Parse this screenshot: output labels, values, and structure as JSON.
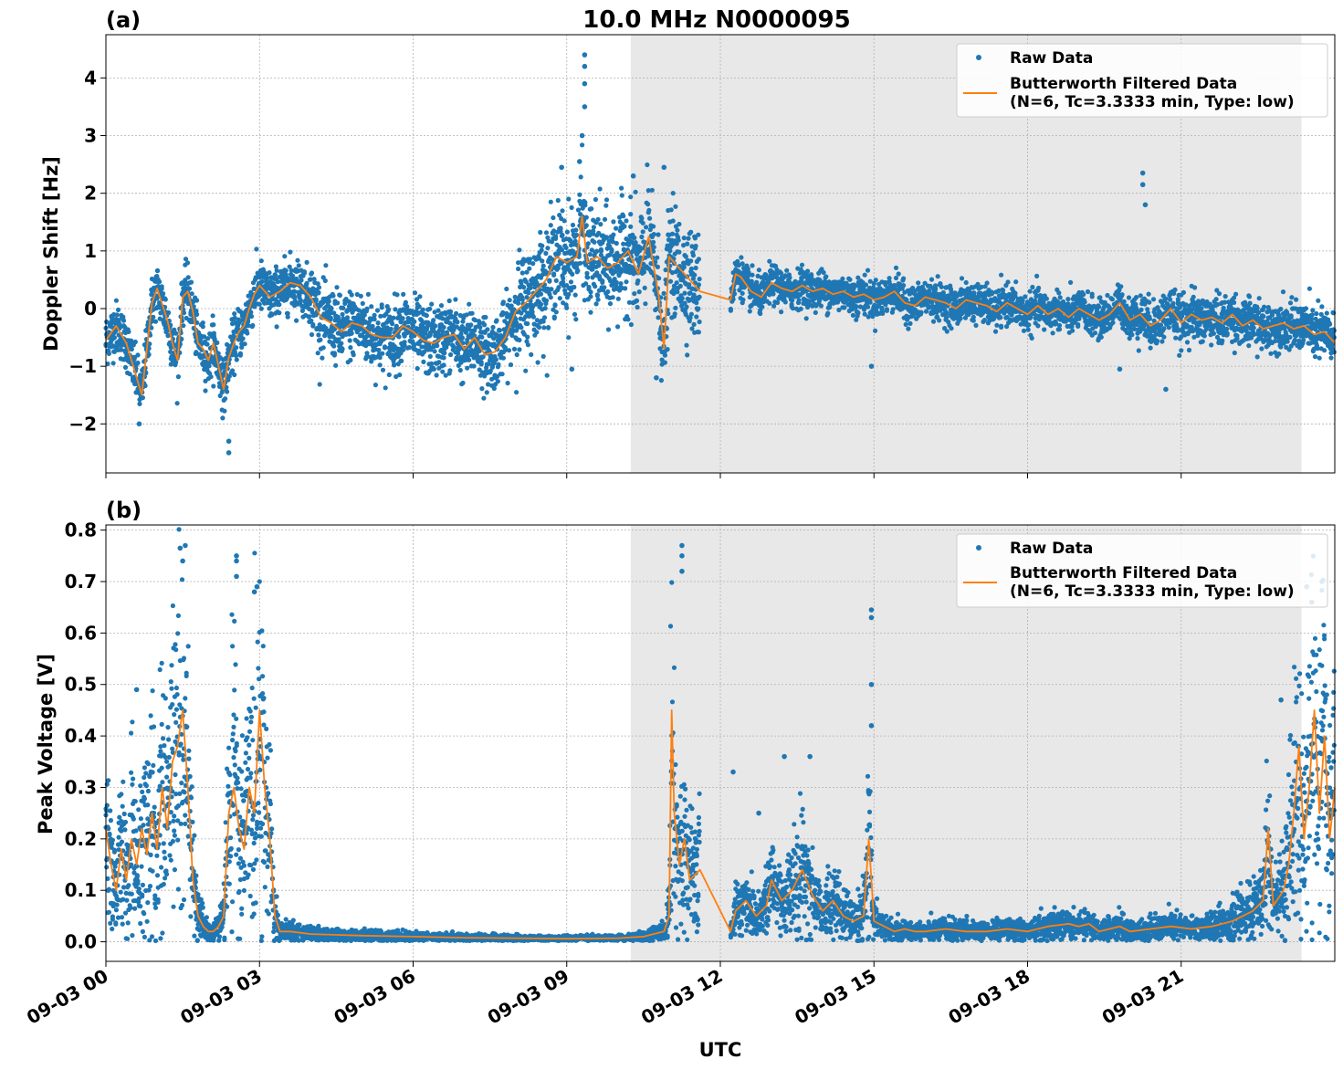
{
  "title": "10.0 MHz N0000095",
  "colors": {
    "raw": "#1f77b4",
    "filtered": "#ff7f0e",
    "shade": "#e8e8e8",
    "grid": "#b0b0b0"
  },
  "x_axis": {
    "label": "UTC",
    "range_hours": [
      0,
      24
    ],
    "ticks": [
      {
        "hour": 0,
        "label": "09-03 00"
      },
      {
        "hour": 3,
        "label": "09-03 03"
      },
      {
        "hour": 6,
        "label": "09-03 06"
      },
      {
        "hour": 9,
        "label": "09-03 09"
      },
      {
        "hour": 12,
        "label": "09-03 12"
      },
      {
        "hour": 15,
        "label": "09-03 15"
      },
      {
        "hour": 18,
        "label": "09-03 18"
      },
      {
        "hour": 21,
        "label": "09-03 21"
      }
    ]
  },
  "chart_data": [
    {
      "type": "scatter",
      "panel_label": "(a)",
      "title": "10.0 MHz N0000095",
      "ylabel": "Doppler Shift [Hz]",
      "ylim": [
        -2.85,
        4.75
      ],
      "yticks": [
        {
          "v": -2,
          "label": "−2"
        },
        {
          "v": -1,
          "label": "−1"
        },
        {
          "v": 0,
          "label": "0"
        },
        {
          "v": 1,
          "label": "1"
        },
        {
          "v": 2,
          "label": "2"
        },
        {
          "v": 3,
          "label": "3"
        },
        {
          "v": 4,
          "label": "4"
        }
      ],
      "shaded_hours": [
        10.25,
        23.35
      ],
      "grid": true,
      "legend": {
        "position": "top-right",
        "raw_label": "Raw Data",
        "filtered_line1": "Butterworth Filtered Data",
        "filtered_line2": "(N=6, Tc=3.3333 min, Type: low)"
      },
      "gap_hours": [
        11.6,
        12.2
      ],
      "series": [
        {
          "name": "Butterworth Filtered Data",
          "x": [
            0,
            0.2,
            0.4,
            0.6,
            0.7,
            0.9,
            1.0,
            1.2,
            1.3,
            1.4,
            1.5,
            1.6,
            1.7,
            1.8,
            1.9,
            2.0,
            2.1,
            2.2,
            2.3,
            2.4,
            2.5,
            2.6,
            2.7,
            2.8,
            2.9,
            3.0,
            3.2,
            3.4,
            3.6,
            3.8,
            4.0,
            4.2,
            4.4,
            4.6,
            4.8,
            5.0,
            5.2,
            5.4,
            5.6,
            5.8,
            6.0,
            6.2,
            6.4,
            6.6,
            6.8,
            7.0,
            7.2,
            7.4,
            7.6,
            7.8,
            8.0,
            8.2,
            8.4,
            8.6,
            8.8,
            9.0,
            9.2,
            9.3,
            9.4,
            9.6,
            9.8,
            10.0,
            10.2,
            10.4,
            10.6,
            10.8,
            10.9,
            11.0,
            11.2,
            11.4,
            11.6,
            12.2,
            12.3,
            12.4,
            12.6,
            12.8,
            13.0,
            13.2,
            13.4,
            13.6,
            13.8,
            14.0,
            14.2,
            14.4,
            14.6,
            14.8,
            15.0,
            15.2,
            15.4,
            15.6,
            15.8,
            16.0,
            16.2,
            16.4,
            16.6,
            16.8,
            17.0,
            17.2,
            17.4,
            17.6,
            17.8,
            18.0,
            18.2,
            18.4,
            18.6,
            18.8,
            19.0,
            19.2,
            19.4,
            19.6,
            19.8,
            20.0,
            20.2,
            20.4,
            20.6,
            20.8,
            21.0,
            21.2,
            21.4,
            21.6,
            21.8,
            22.0,
            22.2,
            22.4,
            22.6,
            22.8,
            23.0,
            23.2,
            23.4,
            23.6,
            23.8,
            24.0
          ],
          "y": [
            -0.55,
            -0.3,
            -0.6,
            -1.2,
            -1.5,
            0.1,
            0.35,
            -0.2,
            -0.6,
            -0.9,
            0.2,
            0.3,
            -0.05,
            -0.6,
            -0.7,
            -0.9,
            -0.6,
            -1.0,
            -1.4,
            -0.85,
            -0.6,
            -0.4,
            -0.3,
            0.0,
            0.25,
            0.4,
            0.2,
            0.3,
            0.45,
            0.4,
            0.2,
            -0.15,
            -0.25,
            -0.4,
            -0.25,
            -0.3,
            -0.45,
            -0.5,
            -0.5,
            -0.3,
            -0.4,
            -0.55,
            -0.6,
            -0.5,
            -0.45,
            -0.7,
            -0.5,
            -0.8,
            -0.75,
            -0.5,
            -0.05,
            0.1,
            0.3,
            0.5,
            0.9,
            0.8,
            0.9,
            1.6,
            0.8,
            0.9,
            0.7,
            0.8,
            1.0,
            0.6,
            1.25,
            0.2,
            -0.7,
            0.9,
            0.7,
            0.5,
            0.3,
            0.15,
            0.6,
            0.55,
            0.3,
            0.2,
            0.45,
            0.35,
            0.3,
            0.4,
            0.3,
            0.35,
            0.25,
            0.3,
            0.2,
            0.25,
            0.15,
            0.2,
            0.3,
            0.1,
            0.05,
            0.2,
            0.15,
            0.1,
            0.0,
            0.15,
            0.1,
            0.05,
            -0.05,
            0.1,
            0.0,
            -0.1,
            0.05,
            -0.1,
            0.0,
            -0.15,
            0.0,
            -0.1,
            -0.2,
            -0.1,
            0.1,
            -0.2,
            -0.1,
            -0.3,
            -0.2,
            0.0,
            -0.25,
            -0.1,
            -0.2,
            -0.15,
            -0.25,
            -0.1,
            -0.3,
            -0.2,
            -0.35,
            -0.3,
            -0.25,
            -0.35,
            -0.3,
            -0.45,
            -0.4,
            -0.6
          ]
        },
        {
          "name": "Raw Data",
          "outliers": [
            {
              "x": 9.35,
              "y": 4.4
            },
            {
              "x": 9.35,
              "y": 4.2
            },
            {
              "x": 9.35,
              "y": 3.9
            },
            {
              "x": 9.35,
              "y": 3.5
            },
            {
              "x": 9.3,
              "y": 3.0
            },
            {
              "x": 9.25,
              "y": 2.55
            },
            {
              "x": 8.9,
              "y": 2.45
            },
            {
              "x": 10.9,
              "y": 2.45
            },
            {
              "x": 10.3,
              "y": 2.3
            },
            {
              "x": 20.25,
              "y": 2.35
            },
            {
              "x": 20.25,
              "y": 2.15
            },
            {
              "x": 20.3,
              "y": 1.8
            },
            {
              "x": 9.1,
              "y": -1.05
            },
            {
              "x": 10.75,
              "y": -1.2
            },
            {
              "x": 14.95,
              "y": -1.0
            },
            {
              "x": 19.8,
              "y": -1.05
            },
            {
              "x": 20.7,
              "y": -1.4
            },
            {
              "x": 2.4,
              "y": -2.5
            },
            {
              "x": 2.4,
              "y": -2.3
            },
            {
              "x": 0.65,
              "y": -2.0
            }
          ]
        }
      ]
    },
    {
      "type": "scatter",
      "panel_label": "(b)",
      "ylabel": "Peak Voltage [V]",
      "ylim": [
        -0.038,
        0.81
      ],
      "yticks": [
        {
          "v": 0.0,
          "label": "0.0"
        },
        {
          "v": 0.1,
          "label": "0.1"
        },
        {
          "v": 0.2,
          "label": "0.2"
        },
        {
          "v": 0.3,
          "label": "0.3"
        },
        {
          "v": 0.4,
          "label": "0.4"
        },
        {
          "v": 0.5,
          "label": "0.5"
        },
        {
          "v": 0.6,
          "label": "0.6"
        },
        {
          "v": 0.7,
          "label": "0.7"
        },
        {
          "v": 0.8,
          "label": "0.8"
        }
      ],
      "shaded_hours": [
        10.25,
        23.35
      ],
      "grid": true,
      "legend": {
        "position": "top-right",
        "raw_label": "Raw Data",
        "filtered_line1": "Butterworth Filtered Data",
        "filtered_line2": "(N=6, Tc=3.3333 min, Type: low)"
      },
      "gap_hours": [
        11.6,
        12.2
      ],
      "series": [
        {
          "name": "Butterworth Filtered Data",
          "x": [
            0,
            0.1,
            0.2,
            0.3,
            0.4,
            0.5,
            0.6,
            0.7,
            0.8,
            0.9,
            1.0,
            1.1,
            1.2,
            1.3,
            1.4,
            1.5,
            1.6,
            1.7,
            1.8,
            1.9,
            2.0,
            2.1,
            2.2,
            2.3,
            2.4,
            2.5,
            2.6,
            2.7,
            2.8,
            2.9,
            3.0,
            3.1,
            3.2,
            3.3,
            3.4,
            3.6,
            4.0,
            5.0,
            6.0,
            7.0,
            8.0,
            9.0,
            10.0,
            10.5,
            10.9,
            11.0,
            11.05,
            11.1,
            11.2,
            11.3,
            11.4,
            11.6,
            12.2,
            12.3,
            12.5,
            12.7,
            12.9,
            13.0,
            13.2,
            13.4,
            13.6,
            13.8,
            14.0,
            14.2,
            14.4,
            14.6,
            14.8,
            14.9,
            15.0,
            15.2,
            15.4,
            15.6,
            15.8,
            16.0,
            16.4,
            16.8,
            17.2,
            17.6,
            18.0,
            18.4,
            18.8,
            19.0,
            19.2,
            19.4,
            19.6,
            19.8,
            20.0,
            20.4,
            20.8,
            21.2,
            21.6,
            22.0,
            22.2,
            22.4,
            22.6,
            22.7,
            22.8,
            23.0,
            23.1,
            23.2,
            23.3,
            23.4,
            23.5,
            23.6,
            23.7,
            23.8,
            23.9,
            24.0
          ],
          "y": [
            0.22,
            0.15,
            0.1,
            0.18,
            0.12,
            0.2,
            0.15,
            0.22,
            0.17,
            0.25,
            0.18,
            0.3,
            0.22,
            0.35,
            0.38,
            0.45,
            0.3,
            0.12,
            0.05,
            0.03,
            0.02,
            0.02,
            0.03,
            0.05,
            0.25,
            0.3,
            0.22,
            0.18,
            0.3,
            0.25,
            0.45,
            0.3,
            0.2,
            0.05,
            0.02,
            0.02,
            0.015,
            0.012,
            0.01,
            0.008,
            0.007,
            0.006,
            0.007,
            0.01,
            0.02,
            0.05,
            0.45,
            0.25,
            0.15,
            0.2,
            0.12,
            0.14,
            0.02,
            0.06,
            0.08,
            0.05,
            0.07,
            0.12,
            0.08,
            0.1,
            0.14,
            0.09,
            0.06,
            0.08,
            0.05,
            0.04,
            0.05,
            0.2,
            0.04,
            0.03,
            0.02,
            0.025,
            0.02,
            0.02,
            0.025,
            0.02,
            0.02,
            0.025,
            0.02,
            0.03,
            0.035,
            0.03,
            0.035,
            0.02,
            0.025,
            0.03,
            0.02,
            0.025,
            0.03,
            0.025,
            0.03,
            0.04,
            0.05,
            0.06,
            0.08,
            0.22,
            0.07,
            0.1,
            0.15,
            0.25,
            0.38,
            0.2,
            0.3,
            0.45,
            0.25,
            0.4,
            0.2,
            0.3
          ]
        },
        {
          "name": "Raw Data",
          "outliers": [
            {
              "x": 1.55,
              "y": 0.77
            },
            {
              "x": 1.45,
              "y": 0.765
            },
            {
              "x": 1.5,
              "y": 0.74
            },
            {
              "x": 2.55,
              "y": 0.75
            },
            {
              "x": 2.55,
              "y": 0.74
            },
            {
              "x": 2.55,
              "y": 0.71
            },
            {
              "x": 2.95,
              "y": 0.69
            },
            {
              "x": 2.9,
              "y": 0.68
            },
            {
              "x": 11.25,
              "y": 0.77
            },
            {
              "x": 11.25,
              "y": 0.75
            },
            {
              "x": 11.25,
              "y": 0.72
            },
            {
              "x": 14.95,
              "y": 0.645
            },
            {
              "x": 14.95,
              "y": 0.63
            },
            {
              "x": 14.95,
              "y": 0.5
            },
            {
              "x": 14.95,
              "y": 0.42
            },
            {
              "x": 23.75,
              "y": 0.7
            },
            {
              "x": 23.45,
              "y": 0.69
            },
            {
              "x": 23.55,
              "y": 0.66
            },
            {
              "x": 22.95,
              "y": 0.47
            },
            {
              "x": 12.25,
              "y": 0.33
            },
            {
              "x": 13.25,
              "y": 0.36
            },
            {
              "x": 13.75,
              "y": 0.36
            },
            {
              "x": 12.75,
              "y": 0.25
            },
            {
              "x": 0.6,
              "y": 0.49
            }
          ]
        }
      ]
    }
  ]
}
